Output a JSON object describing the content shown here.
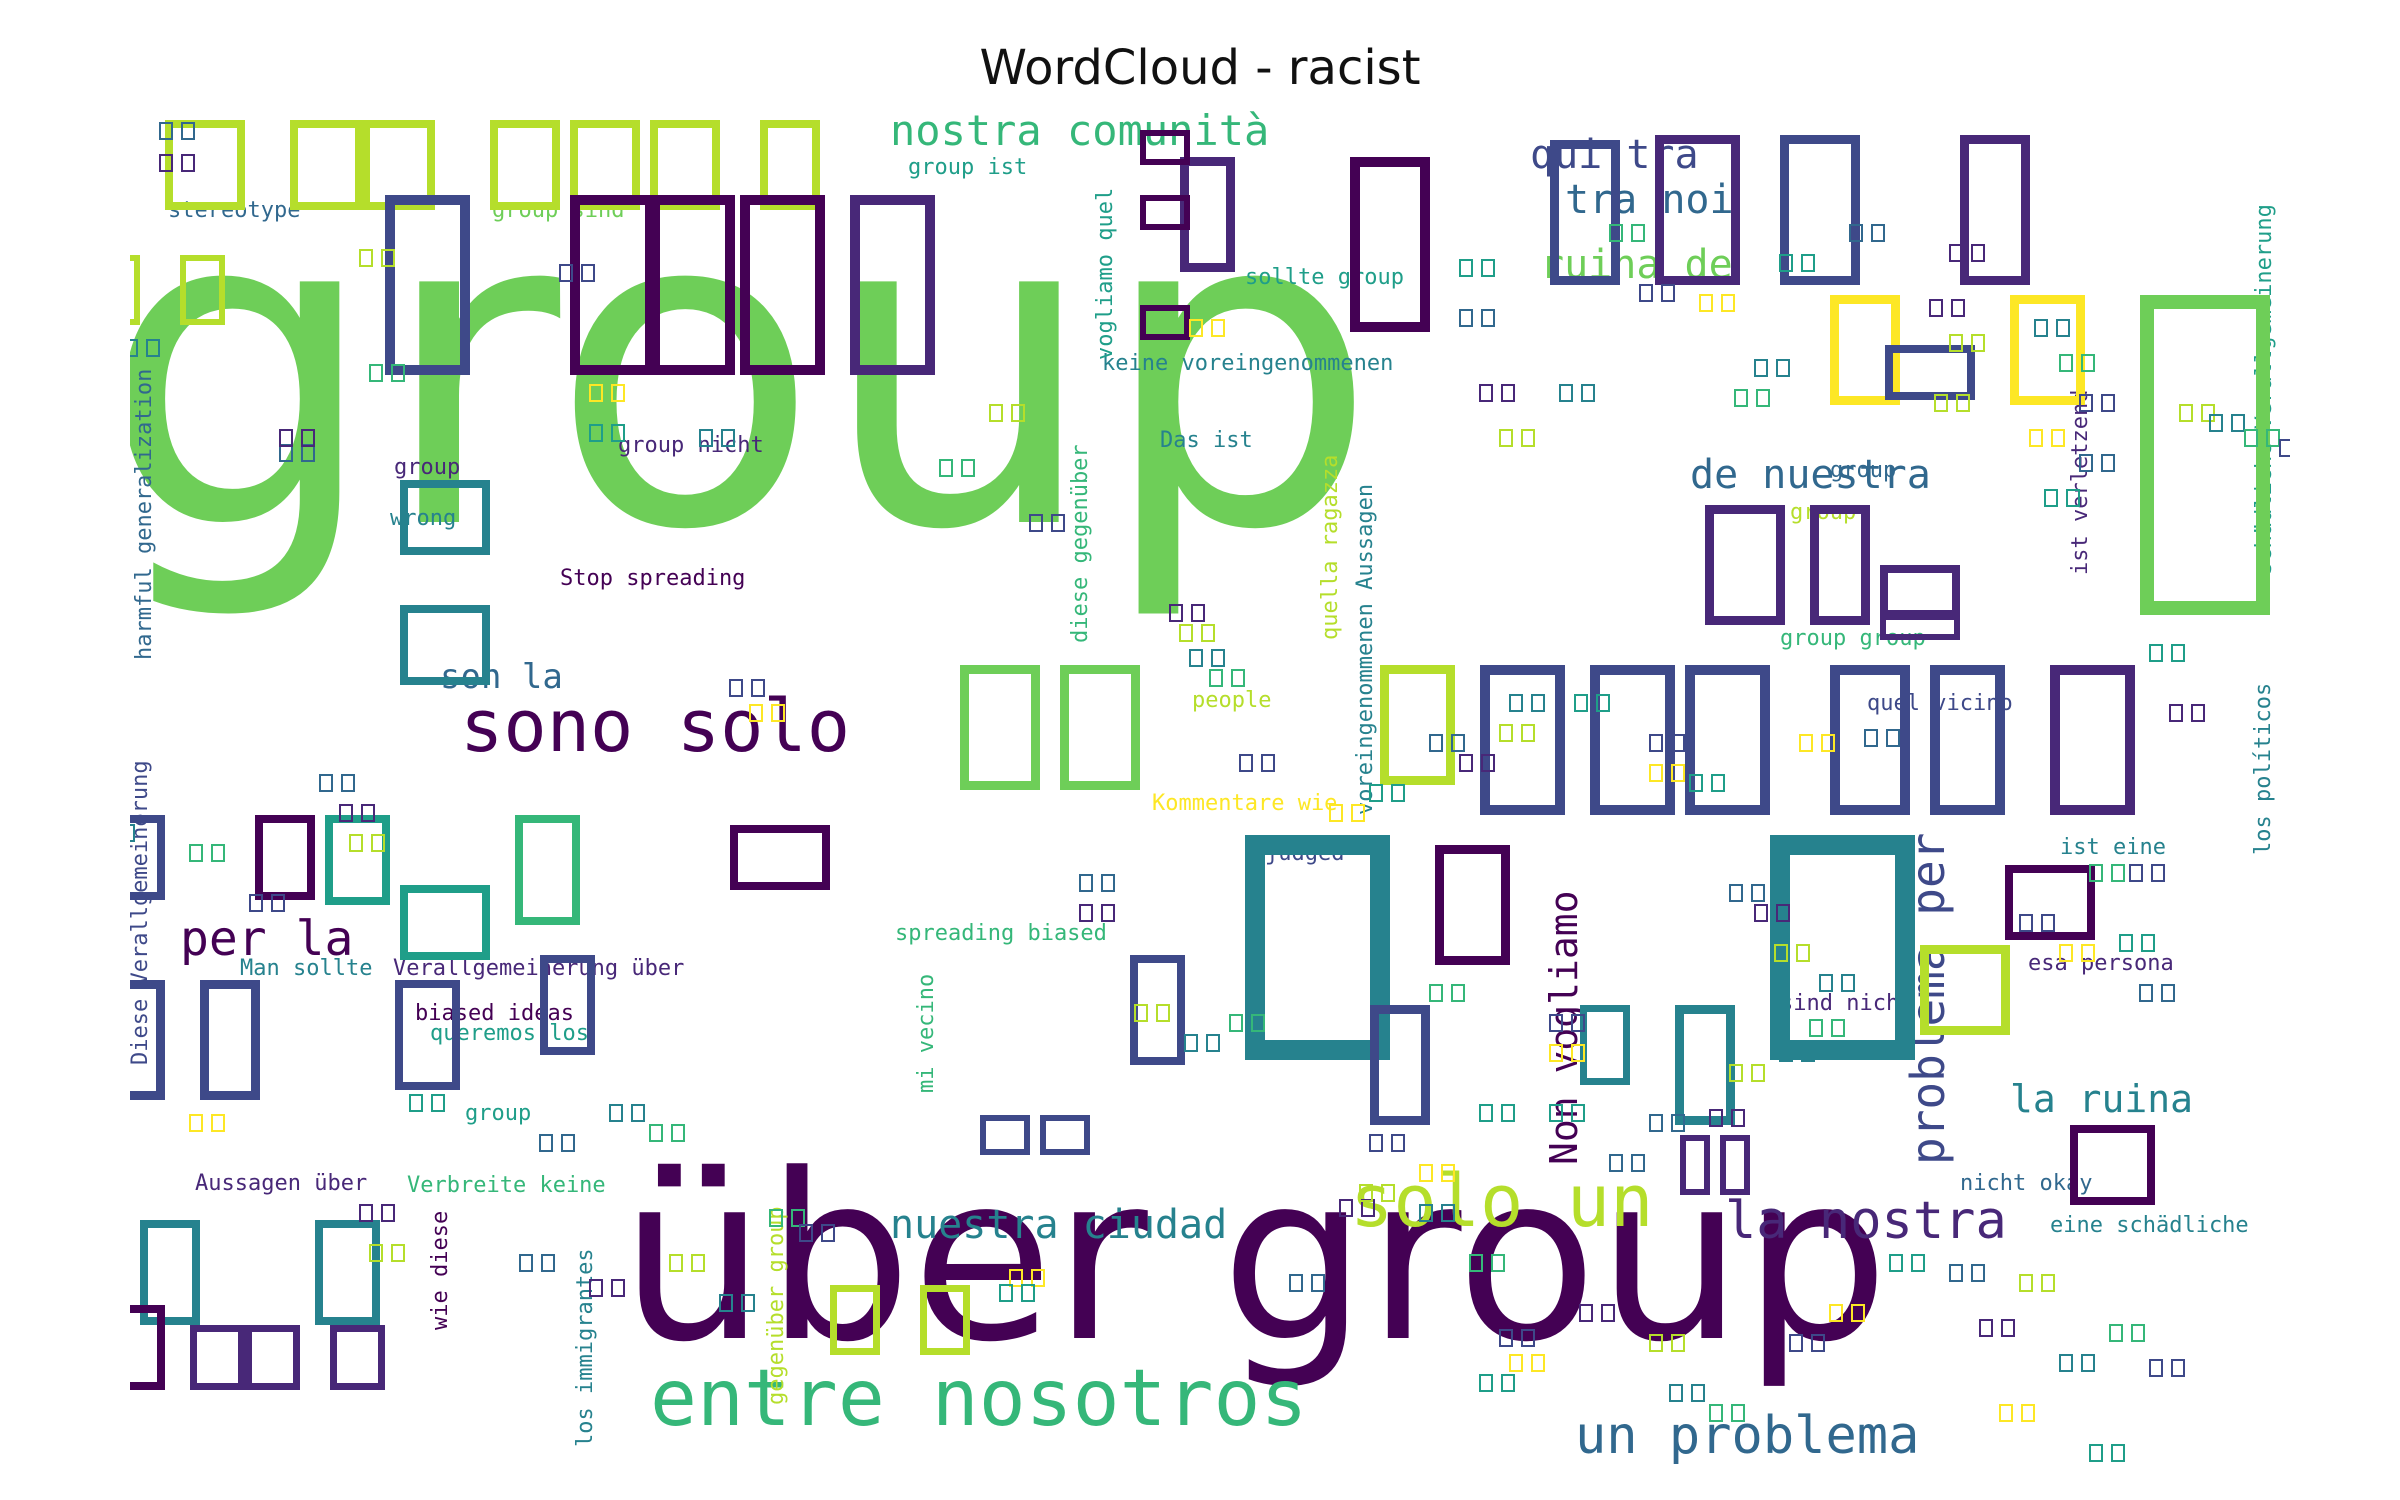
{
  "title": "WordCloud - racist",
  "colors": {
    "darkPurple": "#440154",
    "purple": "#482878",
    "indigo": "#3e4989",
    "blue": "#31688e",
    "teal": "#26828e",
    "tealGreen": "#1f9e89",
    "green": "#35b779",
    "lightGreen": "#6ece58",
    "yellowGreen": "#b5de2b",
    "yellow": "#fde725"
  },
  "words": [
    {
      "text": "group",
      "color": "lightGreen"
    },
    {
      "text": "über group",
      "color": "darkPurple"
    },
    {
      "text": "sono solo",
      "color": "darkPurple"
    },
    {
      "text": "entre nosotros",
      "color": "green"
    },
    {
      "text": "solo un",
      "color": "yellowGreen"
    },
    {
      "text": "la nostra",
      "color": "purple"
    },
    {
      "text": "un problema",
      "color": "blue"
    },
    {
      "text": "nuestra ciudad",
      "color": "teal"
    },
    {
      "text": "problema per",
      "color": "indigo"
    },
    {
      "text": "Non vogliamo",
      "color": "darkPurple"
    },
    {
      "text": "la ruina",
      "color": "teal"
    },
    {
      "text": "de nuestra",
      "color": "blue"
    },
    {
      "text": "ruina de",
      "color": "lightGreen"
    },
    {
      "text": "nostra comunità",
      "color": "green"
    },
    {
      "text": "qui tra",
      "color": "indigo"
    },
    {
      "text": "tra noi",
      "color": "blue"
    },
    {
      "text": "per la",
      "color": "darkPurple"
    },
    {
      "text": "son la",
      "color": "blue"
    },
    {
      "text": "group ist",
      "color": "tealGreen"
    },
    {
      "text": "stereotype",
      "color": "blue"
    },
    {
      "text": "group sind",
      "color": "lightGreen"
    },
    {
      "text": "sollte group",
      "color": "tealGreen"
    },
    {
      "text": "keine voreingenommenen",
      "color": "teal"
    },
    {
      "text": "Das ist",
      "color": "teal"
    },
    {
      "text": "group nicht",
      "color": "purple"
    },
    {
      "text": "wrong",
      "color": "teal"
    },
    {
      "text": "Stop spreading",
      "color": "darkPurple"
    },
    {
      "text": "people",
      "color": "yellowGreen"
    },
    {
      "text": "Kommentare wie",
      "color": "yellow"
    },
    {
      "text": "judged",
      "color": "indigo"
    },
    {
      "text": "spreading biased",
      "color": "green"
    },
    {
      "text": "Man sollte",
      "color": "teal"
    },
    {
      "text": "Verallgemeinerung über",
      "color": "purple"
    },
    {
      "text": "biased ideas",
      "color": "darkPurple"
    },
    {
      "text": "queremos los",
      "color": "tealGreen"
    },
    {
      "text": "Aussagen über",
      "color": "purple"
    },
    {
      "text": "Verbreite keine",
      "color": "green"
    },
    {
      "text": "quel vicino",
      "color": "indigo"
    },
    {
      "text": "ist eine",
      "color": "teal"
    },
    {
      "text": "esa persona",
      "color": "purple"
    },
    {
      "text": "sind nicht",
      "color": "purple"
    },
    {
      "text": "nicht okay",
      "color": "blue"
    },
    {
      "text": "eine schädliche",
      "color": "teal"
    },
    {
      "text": "harmful generalization",
      "color": "blue"
    },
    {
      "text": "Diese Verallgemeinerung",
      "color": "indigo"
    },
    {
      "text": "vogliamo quel",
      "color": "tealGreen"
    },
    {
      "text": "quella ragazza",
      "color": "yellowGreen"
    },
    {
      "text": "voreingenommenen Aussagen",
      "color": "teal"
    },
    {
      "text": "diese gegenüber",
      "color": "green"
    },
    {
      "text": "mi vecino",
      "color": "green"
    },
    {
      "text": "wie diese",
      "color": "darkPurple"
    },
    {
      "text": "gegenüber group",
      "color": "yellowGreen"
    },
    {
      "text": "los immigrantes",
      "color": "teal"
    },
    {
      "text": "ist verletzend",
      "color": "purple"
    },
    {
      "text": "schädliche Verallgemeinerung",
      "color": "tealGreen"
    },
    {
      "text": "los políticos",
      "color": "teal"
    },
    {
      "text": "group",
      "color": "purple"
    },
    {
      "text": "group",
      "color": "yellowGreen"
    },
    {
      "text": "group group",
      "color": "green"
    },
    {
      "text": "group",
      "color": "blue"
    },
    {
      "text": "group",
      "color": "tealGreen"
    }
  ]
}
